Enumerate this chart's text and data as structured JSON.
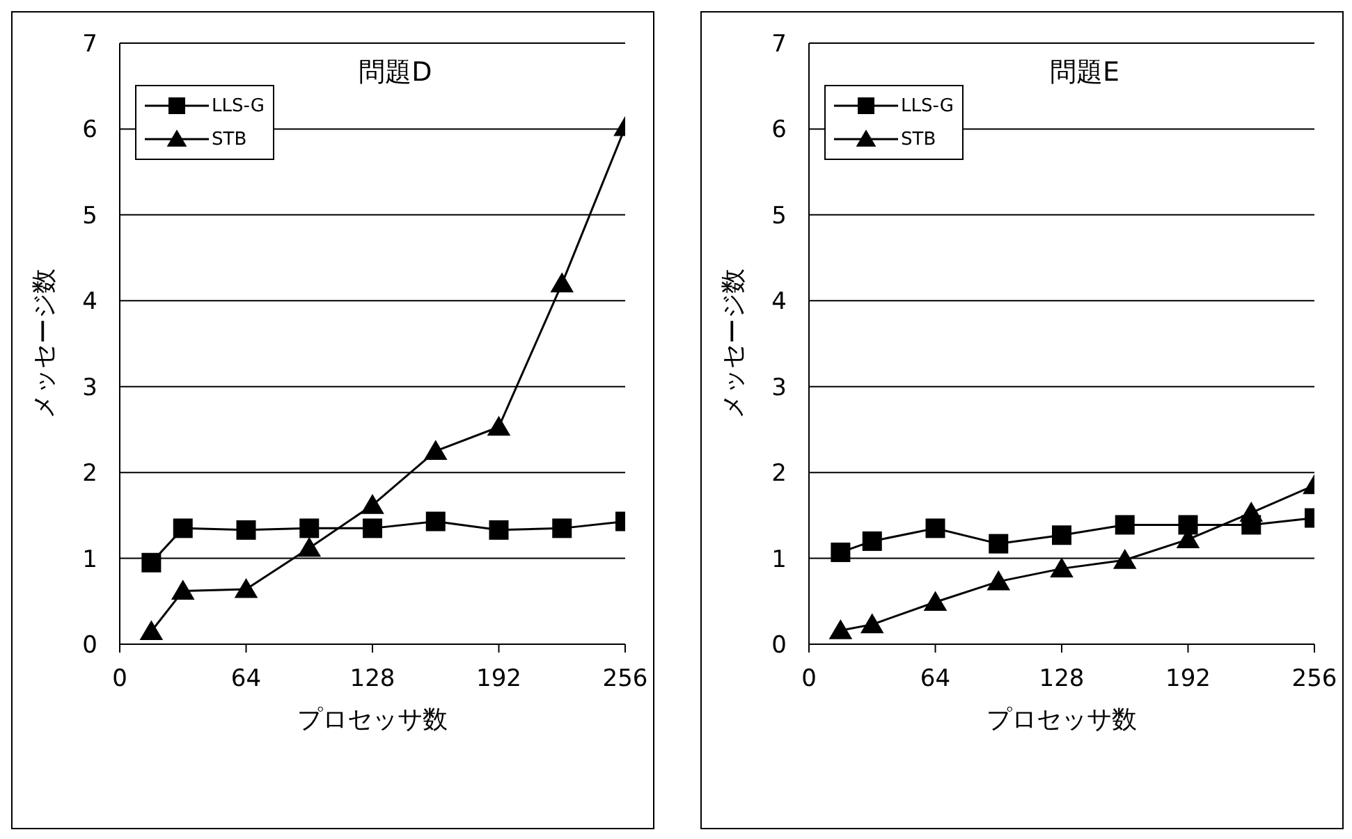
{
  "chart_data": [
    {
      "type": "line",
      "title": "問題D",
      "xlabel": "プロセッサ数",
      "ylabel": "メッセージ数",
      "x": [
        16,
        32,
        64,
        96,
        128,
        160,
        192,
        224,
        256
      ],
      "xlim": [
        0,
        256
      ],
      "xticks": [
        0,
        64,
        128,
        192,
        256
      ],
      "ylim": [
        0,
        7
      ],
      "yticks": [
        0,
        1,
        2,
        3,
        4,
        5,
        6,
        7
      ],
      "grid": "y",
      "legend": "top left",
      "line_style": "solid",
      "series": [
        {
          "name": "LLS-G",
          "color": "#000000",
          "marker": "square",
          "values": [
            0.95,
            1.35,
            1.33,
            1.35,
            1.35,
            1.43,
            1.33,
            1.35,
            1.43
          ]
        },
        {
          "name": "STB",
          "color": "#000000",
          "marker": "triangle",
          "values": [
            0.15,
            0.62,
            0.64,
            1.12,
            1.62,
            2.25,
            2.53,
            4.2,
            6.02
          ]
        }
      ]
    },
    {
      "type": "line",
      "title": "問題E",
      "xlabel": "プロセッサ数",
      "ylabel": "メッセージ数",
      "x": [
        16,
        32,
        64,
        96,
        128,
        160,
        192,
        224,
        256
      ],
      "xlim": [
        0,
        256
      ],
      "xticks": [
        0,
        64,
        128,
        192,
        256
      ],
      "ylim": [
        0,
        7
      ],
      "yticks": [
        0,
        1,
        2,
        3,
        4,
        5,
        6,
        7
      ],
      "grid": "y",
      "legend": "top left",
      "line_style": "solid",
      "series": [
        {
          "name": "LLS-G",
          "color": "#000000",
          "marker": "square",
          "values": [
            1.07,
            1.2,
            1.35,
            1.17,
            1.27,
            1.39,
            1.39,
            1.39,
            1.47
          ]
        },
        {
          "name": "STB",
          "color": "#000000",
          "marker": "triangle",
          "values": [
            0.16,
            0.23,
            0.49,
            0.73,
            0.88,
            0.98,
            1.22,
            1.53,
            1.85
          ]
        }
      ]
    }
  ]
}
